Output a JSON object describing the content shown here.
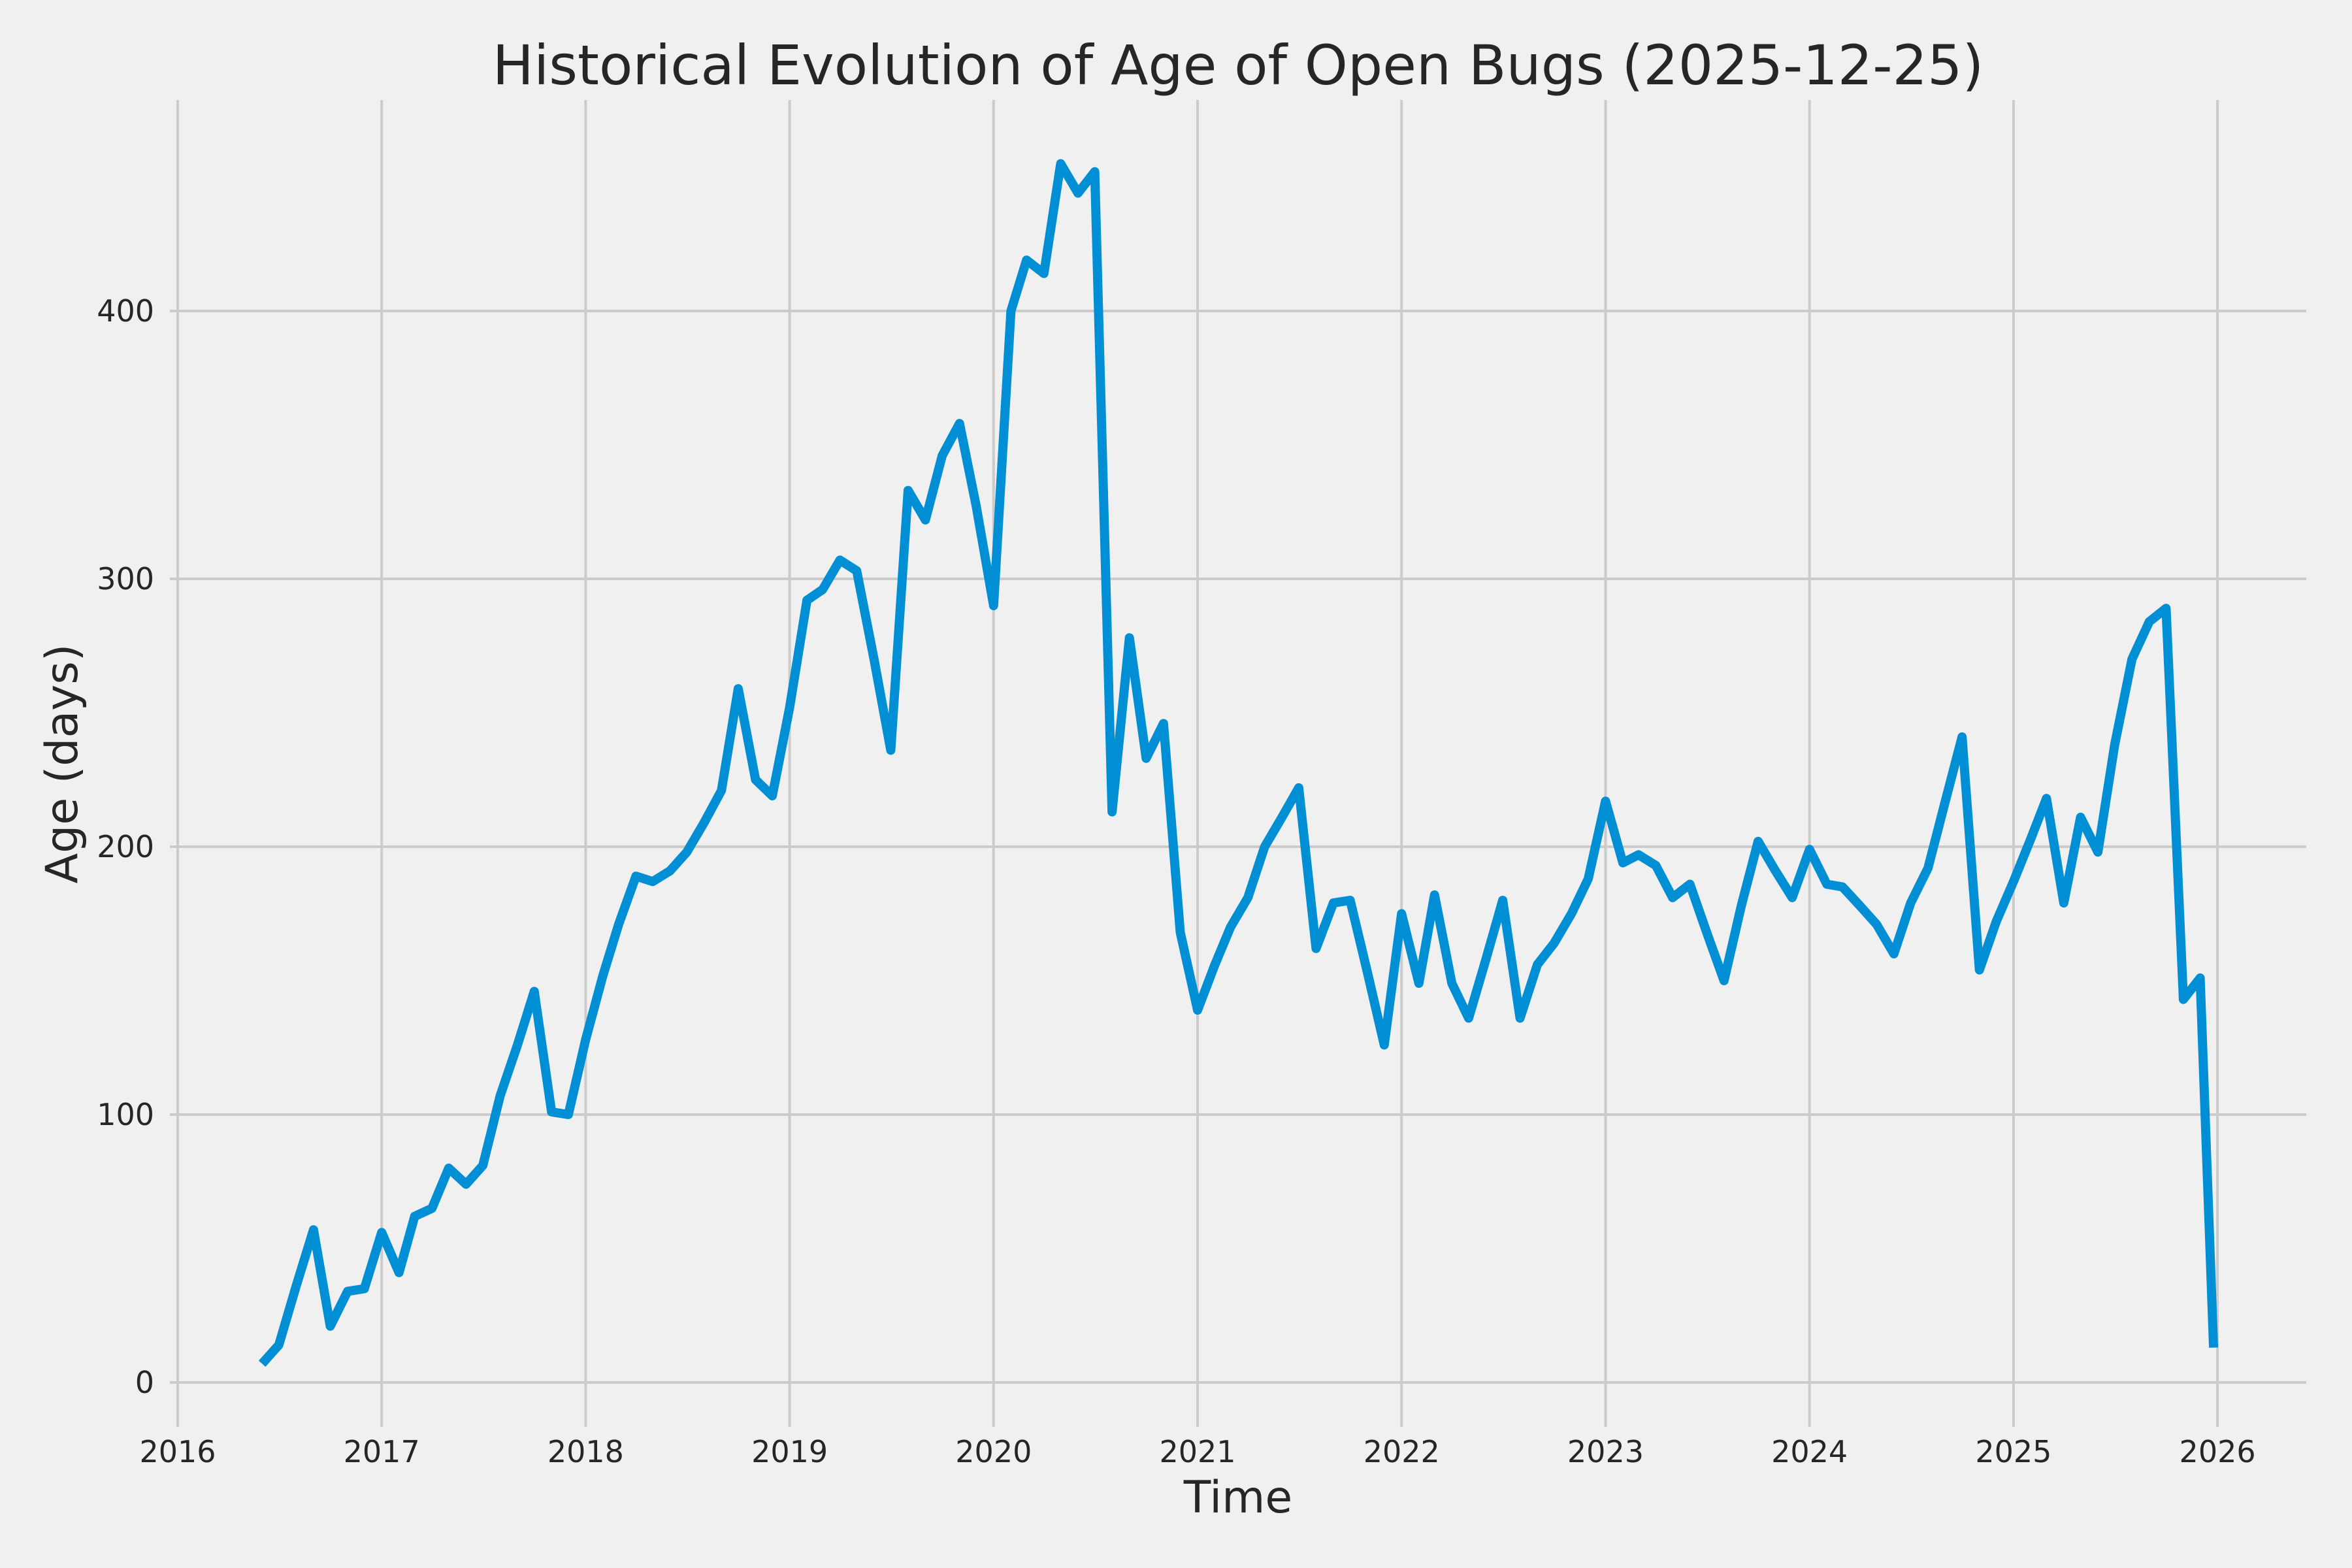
{
  "chart_data": {
    "type": "line",
    "title": "Historical Evolution of Age of Open Bugs (2025-12-25)",
    "xlabel": "Time",
    "ylabel": "Age (days)",
    "grid": true,
    "legend": false,
    "x_tick_labels": [
      "2016",
      "2017",
      "2018",
      "2019",
      "2020",
      "2021",
      "2022",
      "2023",
      "2024",
      "2025",
      "2026"
    ],
    "x_tick_years": [
      2016,
      2017,
      2018,
      2019,
      2020,
      2021,
      2022,
      2023,
      2024,
      2025,
      2026
    ],
    "y_tick_labels": [
      "0",
      "100",
      "200",
      "300",
      "400"
    ],
    "y_tick_values": [
      0,
      100,
      200,
      300,
      400
    ],
    "xlim_decimal_years": [
      2015.9616,
      2026.4353
    ],
    "ylim": [
      -16.59,
      478.78
    ],
    "colors": {
      "line": "#008fd5",
      "background": "#f0f0f0",
      "grid": "#cbcbcb",
      "text": "#262626"
    },
    "series": [
      {
        "name": "age-of-open-bugs",
        "points": [
          [
            "2016-06-01",
            7
          ],
          [
            "2016-07-01",
            14
          ],
          [
            "2016-08-01",
            36
          ],
          [
            "2016-09-01",
            57
          ],
          [
            "2016-10-01",
            21
          ],
          [
            "2016-11-01",
            34
          ],
          [
            "2016-12-01",
            35
          ],
          [
            "2017-01-01",
            56
          ],
          [
            "2017-02-01",
            41
          ],
          [
            "2017-03-01",
            62
          ],
          [
            "2017-04-01",
            65
          ],
          [
            "2017-05-01",
            80
          ],
          [
            "2017-06-01",
            74
          ],
          [
            "2017-07-01",
            81
          ],
          [
            "2017-08-01",
            107
          ],
          [
            "2017-09-01",
            126
          ],
          [
            "2017-10-01",
            146
          ],
          [
            "2017-11-01",
            101
          ],
          [
            "2017-12-01",
            100
          ],
          [
            "2018-01-01",
            128
          ],
          [
            "2018-02-01",
            152
          ],
          [
            "2018-03-01",
            171
          ],
          [
            "2018-04-01",
            189
          ],
          [
            "2018-05-01",
            187
          ],
          [
            "2018-06-01",
            191
          ],
          [
            "2018-07-01",
            198
          ],
          [
            "2018-08-01",
            209
          ],
          [
            "2018-09-01",
            221
          ],
          [
            "2018-10-01",
            259
          ],
          [
            "2018-11-01",
            225
          ],
          [
            "2018-12-01",
            219
          ],
          [
            "2019-01-01",
            252
          ],
          [
            "2019-02-01",
            292
          ],
          [
            "2019-03-01",
            296
          ],
          [
            "2019-04-01",
            307
          ],
          [
            "2019-05-01",
            303
          ],
          [
            "2019-06-01",
            270
          ],
          [
            "2019-07-01",
            236
          ],
          [
            "2019-08-01",
            333
          ],
          [
            "2019-09-01",
            322
          ],
          [
            "2019-10-01",
            346
          ],
          [
            "2019-11-01",
            358
          ],
          [
            "2019-12-01",
            327
          ],
          [
            "2020-01-01",
            290
          ],
          [
            "2020-02-01",
            400
          ],
          [
            "2020-03-01",
            419
          ],
          [
            "2020-04-01",
            414
          ],
          [
            "2020-05-01",
            455
          ],
          [
            "2020-06-01",
            444
          ],
          [
            "2020-07-01",
            452
          ],
          [
            "2020-08-01",
            213
          ],
          [
            "2020-09-01",
            278
          ],
          [
            "2020-10-01",
            233
          ],
          [
            "2020-11-01",
            246
          ],
          [
            "2020-12-01",
            168
          ],
          [
            "2021-01-01",
            139
          ],
          [
            "2021-02-01",
            156
          ],
          [
            "2021-03-01",
            170
          ],
          [
            "2021-04-01",
            181
          ],
          [
            "2021-05-01",
            200
          ],
          [
            "2021-06-01",
            211
          ],
          [
            "2021-07-01",
            222
          ],
          [
            "2021-08-01",
            162
          ],
          [
            "2021-09-01",
            179
          ],
          [
            "2021-10-01",
            180
          ],
          [
            "2021-11-01",
            153
          ],
          [
            "2021-12-01",
            126
          ],
          [
            "2022-01-01",
            175
          ],
          [
            "2022-02-01",
            149
          ],
          [
            "2022-03-01",
            182
          ],
          [
            "2022-04-01",
            149
          ],
          [
            "2022-05-01",
            136
          ],
          [
            "2022-06-01",
            158
          ],
          [
            "2022-07-01",
            180
          ],
          [
            "2022-08-01",
            136
          ],
          [
            "2022-09-01",
            156
          ],
          [
            "2022-10-01",
            164
          ],
          [
            "2022-11-01",
            175
          ],
          [
            "2022-12-01",
            188
          ],
          [
            "2023-01-01",
            217
          ],
          [
            "2023-02-01",
            194
          ],
          [
            "2023-03-01",
            197
          ],
          [
            "2023-04-01",
            193
          ],
          [
            "2023-05-01",
            181
          ],
          [
            "2023-06-01",
            186
          ],
          [
            "2023-07-01",
            168
          ],
          [
            "2023-08-01",
            150
          ],
          [
            "2023-09-01",
            178
          ],
          [
            "2023-10-01",
            202
          ],
          [
            "2023-11-01",
            191
          ],
          [
            "2023-12-01",
            181
          ],
          [
            "2024-01-01",
            199
          ],
          [
            "2024-02-01",
            186
          ],
          [
            "2024-03-01",
            185
          ],
          [
            "2024-04-01",
            178
          ],
          [
            "2024-05-01",
            171
          ],
          [
            "2024-06-01",
            160
          ],
          [
            "2024-07-01",
            179
          ],
          [
            "2024-08-01",
            192
          ],
          [
            "2024-09-01",
            217
          ],
          [
            "2024-10-01",
            241
          ],
          [
            "2024-11-01",
            154
          ],
          [
            "2024-12-01",
            172
          ],
          [
            "2025-01-01",
            187
          ],
          [
            "2025-02-01",
            203
          ],
          [
            "2025-03-01",
            218
          ],
          [
            "2025-04-01",
            179
          ],
          [
            "2025-05-01",
            211
          ],
          [
            "2025-06-01",
            198
          ],
          [
            "2025-07-01",
            238
          ],
          [
            "2025-08-01",
            270
          ],
          [
            "2025-09-01",
            284
          ],
          [
            "2025-10-01",
            289
          ],
          [
            "2025-11-01",
            143
          ],
          [
            "2025-12-01",
            151
          ],
          [
            "2025-12-25",
            13
          ]
        ]
      }
    ]
  }
}
